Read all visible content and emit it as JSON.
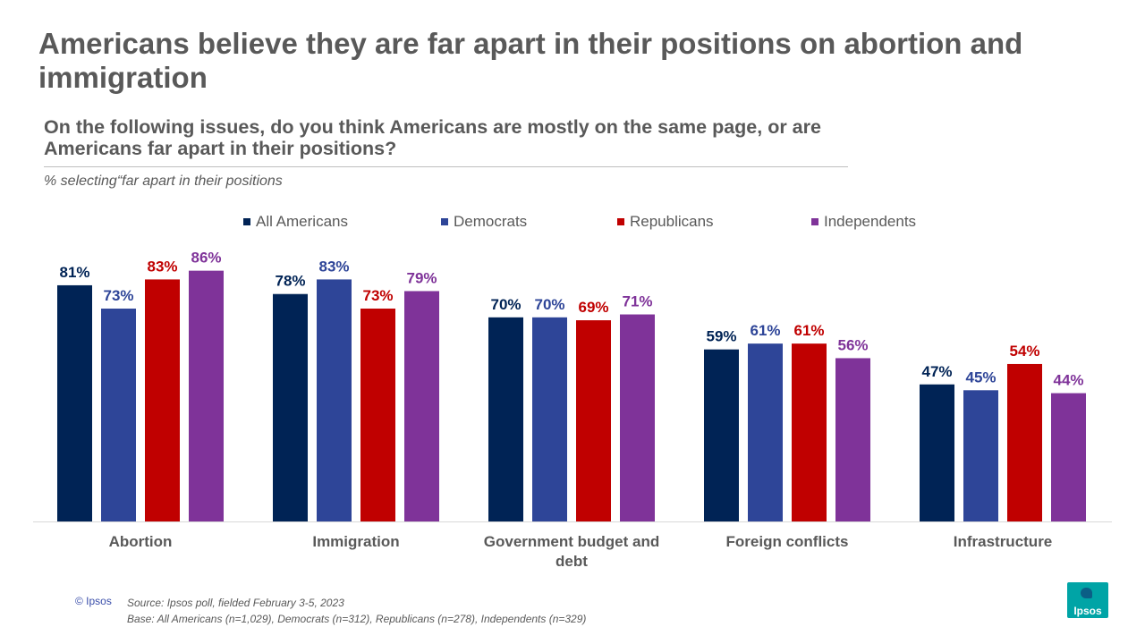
{
  "title": "Americans believe they are far apart in their positions on abortion and immigration",
  "subtitle": "On the following issues, do you think Americans are mostly on the same page, or are Americans far apart in their positions?",
  "note": "% selecting“far apart in their positions",
  "footer": {
    "copyright": "© Ipsos",
    "source": "Source: Ipsos poll, fielded February 3-5, 2023",
    "base": "Base: All Americans (n=1,029), Democrats (n=312), Republicans (n=278), Independents (n=329)"
  },
  "logo": {
    "name": "Ipsos-logo",
    "text": "Ipsos"
  },
  "chart_data": {
    "type": "bar",
    "categories": [
      "Abortion",
      "Immigration",
      "Government budget and debt",
      "Foreign conflicts",
      "Infrastructure"
    ],
    "category_lines": [
      [
        "Abortion"
      ],
      [
        "Immigration"
      ],
      [
        "Government budget and",
        "debt"
      ],
      [
        "Foreign conflicts"
      ],
      [
        "Infrastructure"
      ]
    ],
    "series": [
      {
        "name": "All Americans",
        "color": "#002355",
        "values": [
          81,
          78,
          70,
          59,
          47
        ]
      },
      {
        "name": "Democrats",
        "color": "#2e4598",
        "values": [
          73,
          83,
          70,
          61,
          45
        ]
      },
      {
        "name": "Republicans",
        "color": "#c00000",
        "values": [
          83,
          73,
          69,
          61,
          54
        ]
      },
      {
        "name": "Independents",
        "color": "#7f3399",
        "values": [
          86,
          79,
          71,
          56,
          44
        ]
      }
    ],
    "value_suffix": "%",
    "ylim": [
      0,
      100
    ],
    "grid": false,
    "legend": "top"
  }
}
